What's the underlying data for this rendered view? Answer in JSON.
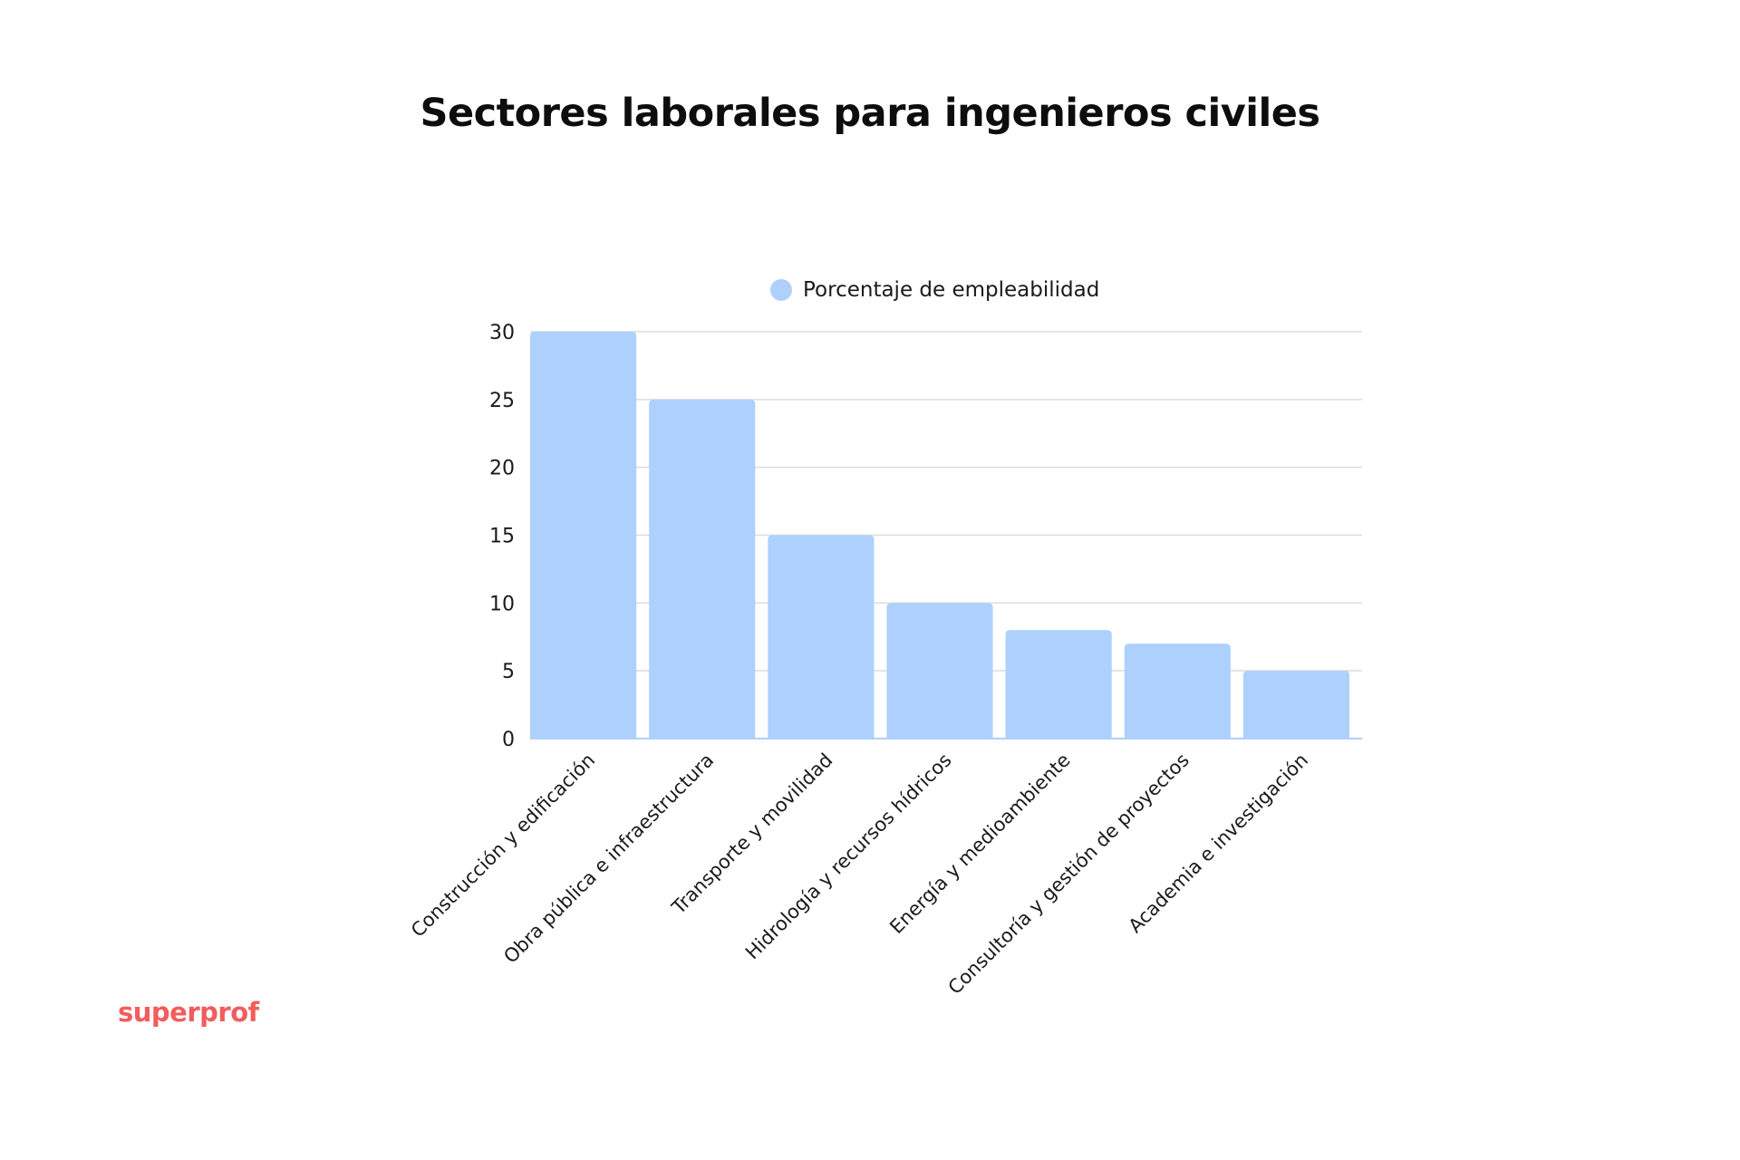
{
  "chart_data": {
    "type": "bar",
    "title": "Sectores laborales para ingenieros civiles",
    "xlabel": "",
    "ylabel": "",
    "categories": [
      "Construcción y edificación",
      "Obra pública e infraestructura",
      "Transporte y movilidad",
      "Hidrología y recursos hídricos",
      "Energía y medioambiente",
      "Consultoría y gestión de proyectos",
      "Academia e investigación"
    ],
    "series": [
      {
        "name": "Porcentaje de empleabilidad",
        "values": [
          30,
          25,
          15,
          10,
          8,
          7,
          5
        ]
      }
    ],
    "ylim": [
      0,
      30
    ],
    "yticks": [
      "0",
      "5",
      "10",
      "15",
      "20",
      "25",
      "30"
    ],
    "grid": true,
    "legend": "top-center",
    "bar_color": "#aed0fd",
    "grid_color": "#dcdcdc"
  },
  "branding": {
    "text": "superprof",
    "color": "#f35c5c"
  }
}
